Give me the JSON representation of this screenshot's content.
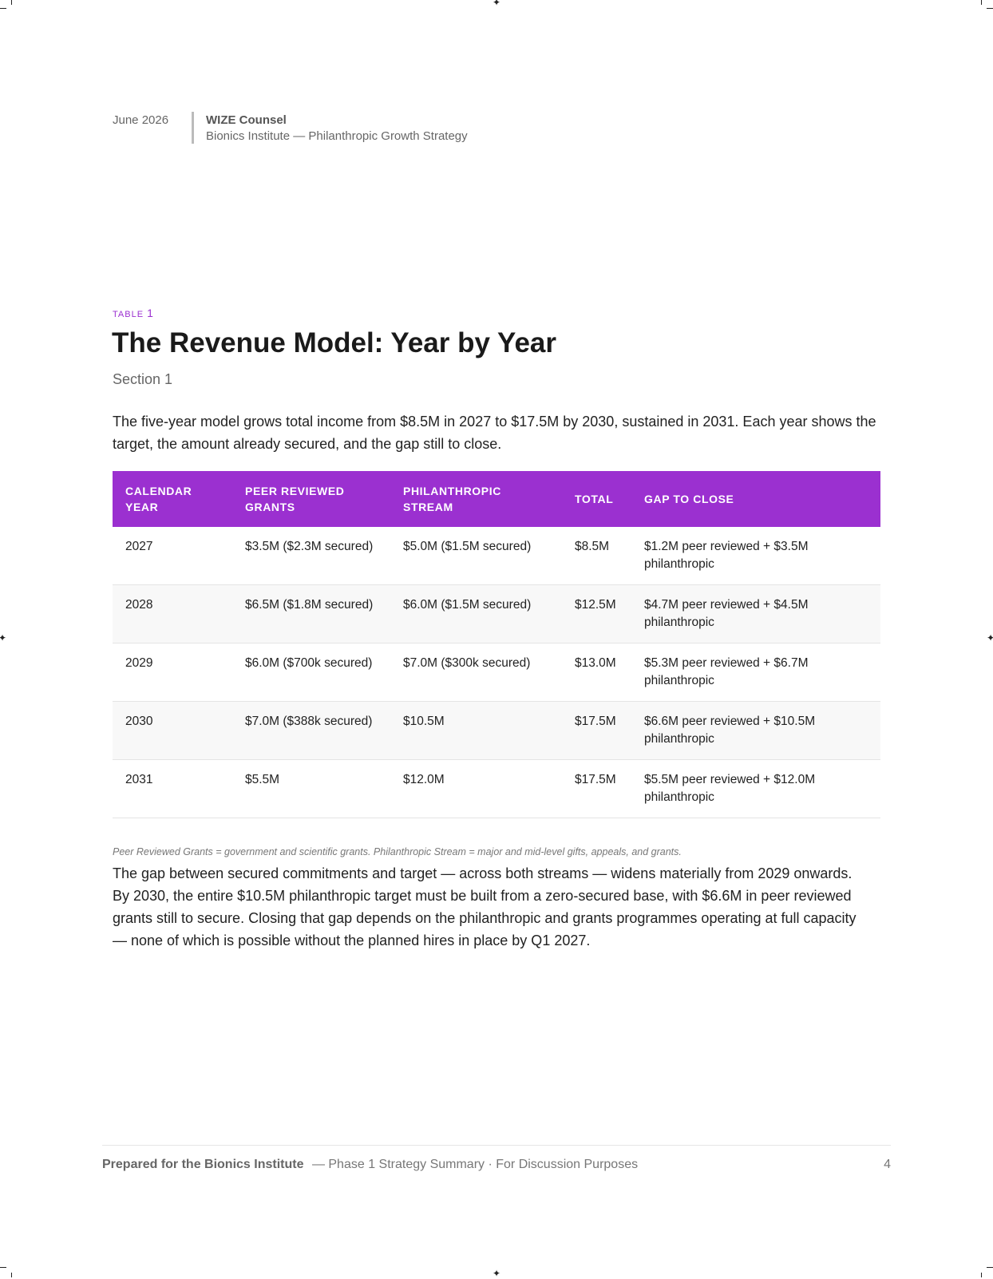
{
  "header": {
    "date": "June 2026",
    "org": "WIZE Counsel",
    "subtitle": "Bionics Institute — Philanthropic Growth Strategy"
  },
  "section": {
    "kicker": "TABLE",
    "number": "1",
    "title": "The Revenue Model: Year by Year",
    "subtitle": "Section 1",
    "intro": "The five-year model grows total income from $8.5M in 2027 to $17.5M by 2030, sustained in 2031. Each year shows the target, the amount already secured, and the gap still to close."
  },
  "table": {
    "headers": [
      "CALENDAR YEAR",
      "PEER REVIEWED GRANTS",
      "PHILANTHROPIC STREAM",
      "TOTAL",
      "GAP TO CLOSE"
    ],
    "rows": [
      [
        "2027",
        "$3.5M ($2.3M secured)",
        "$5.0M ($1.5M secured)",
        "$8.5M",
        "$1.2M peer reviewed + $3.5M philanthropic"
      ],
      [
        "2028",
        "$6.5M ($1.8M secured)",
        "$6.0M ($1.5M secured)",
        "$12.5M",
        "$4.7M peer reviewed + $4.5M philanthropic"
      ],
      [
        "2029",
        "$6.0M ($700k secured)",
        "$7.0M ($300k secured)",
        "$13.0M",
        "$5.3M peer reviewed + $6.7M philanthropic"
      ],
      [
        "2030",
        "$7.0M ($388k secured)",
        "$10.5M",
        "$17.5M",
        "$6.6M peer reviewed + $10.5M philanthropic"
      ],
      [
        "2031",
        "$5.5M",
        "$12.0M",
        "$17.5M",
        "$5.5M peer reviewed + $12.0M philanthropic"
      ]
    ],
    "note": "Peer Reviewed Grants = government and scientific grants. Philanthropic Stream = major and mid-level gifts, appeals, and grants."
  },
  "body": "The gap between secured commitments and target — across both streams — widens materially from 2029 onwards. By 2030, the entire $10.5M philanthropic target must be built from a zero-secured base, with $6.6M in peer reviewed grants still to secure. Closing that gap depends on the philanthropic and grants programmes operating at full capacity — none of which is possible without the planned hires in place by Q1 2027.",
  "footer": {
    "prepared": "Prepared for the Bionics Institute",
    "rest": "— Phase 1 Strategy Summary · For Discussion Purposes",
    "page": "4"
  }
}
